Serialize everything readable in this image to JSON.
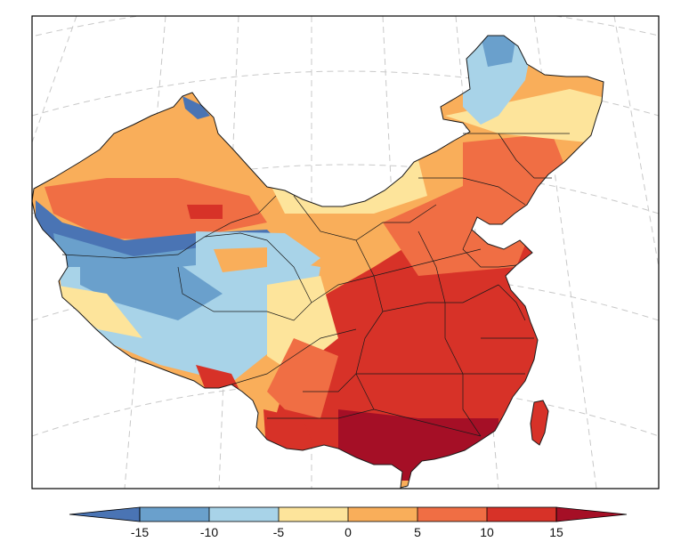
{
  "map": {
    "region": "China",
    "projection": "conic",
    "graticule": "dashed gray lines",
    "province_borders": true,
    "variable_hint": "temperature-like field, cold in Tibetan Plateau and northeast, warm in south"
  },
  "colorbar": {
    "orientation": "horizontal",
    "extend": "both",
    "tick_labels": [
      "-15",
      "-10",
      "-5",
      "0",
      "5",
      "10",
      "15"
    ],
    "levels": [
      -15,
      -10,
      -5,
      0,
      5,
      10,
      15
    ],
    "colors": {
      "below": "#4a74b4",
      "bins": [
        "#6aa0cc",
        "#a8d3e8",
        "#fde49b",
        "#f9ae5a",
        "#f06e44",
        "#d73228"
      ],
      "above": "#a50f26"
    }
  }
}
